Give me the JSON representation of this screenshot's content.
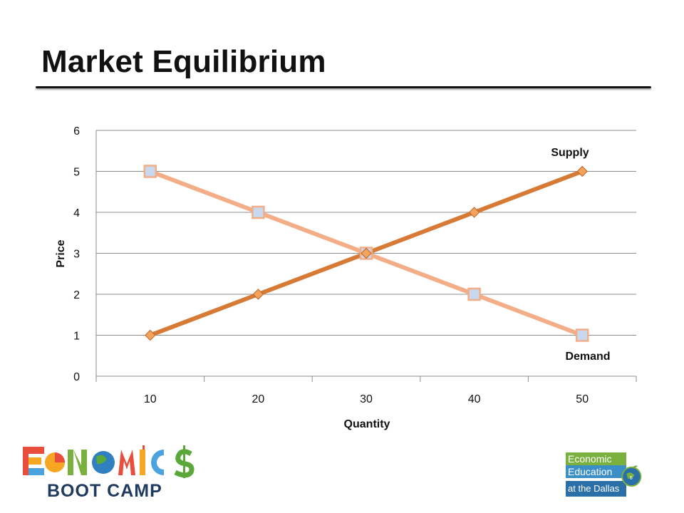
{
  "slide": {
    "title": "Market Equilibrium"
  },
  "logos": {
    "left_text_top": "ECONOMICS",
    "left_text_bottom": "BOOT CAMP",
    "right_line1": "Economic",
    "right_line2": "Education",
    "right_line3": "at the Dallas Fed"
  },
  "chart_data": {
    "type": "line",
    "categories": [
      "10",
      "20",
      "30",
      "40",
      "50"
    ],
    "series": [
      {
        "name": "Supply",
        "values": [
          1,
          2,
          3,
          4,
          5
        ],
        "color": "#d67a35",
        "marker": "diamond"
      },
      {
        "name": "Demand",
        "values": [
          5,
          4,
          3,
          2,
          1
        ],
        "color": "#f3ad87",
        "marker": "square"
      }
    ],
    "xlabel": "Quantity",
    "ylabel": "Price",
    "ylim": [
      0,
      6
    ],
    "yticks": [
      "0",
      "1",
      "2",
      "3",
      "4",
      "5",
      "6"
    ],
    "grid": true,
    "legend": "none"
  }
}
